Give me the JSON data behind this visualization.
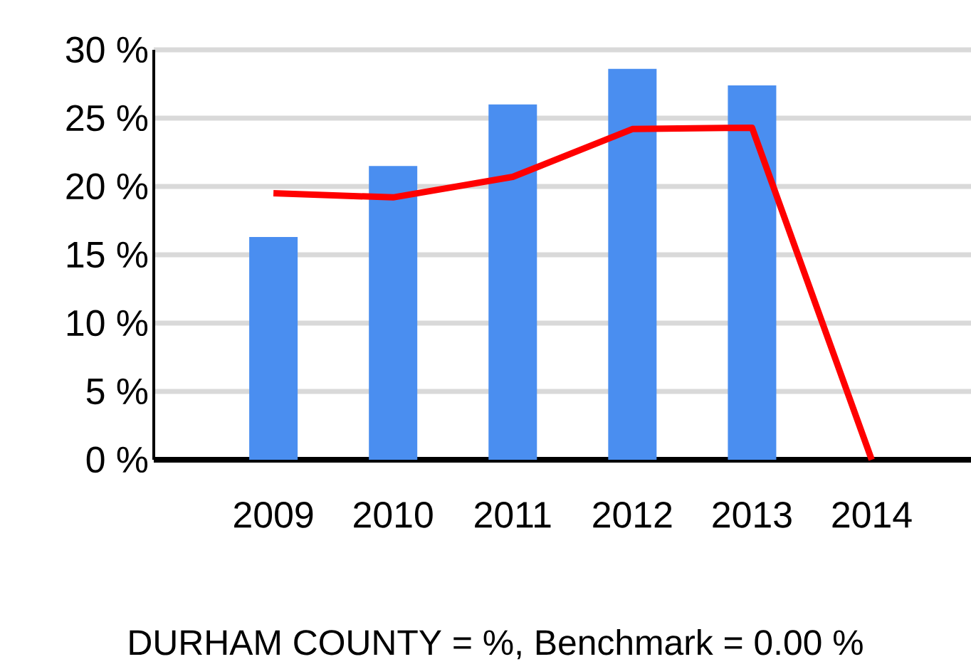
{
  "chart_data": {
    "type": "bar",
    "categories": [
      "2009",
      "2010",
      "2011",
      "2012",
      "2013",
      "2014"
    ],
    "series": [
      {
        "color": "#4a8ef0",
        "values": [
          16.3,
          21.5,
          26.0,
          28.6,
          27.4,
          null
        ]
      },
      {
        "type": "line",
        "color": "#ff0000",
        "values": [
          19.5,
          19.2,
          20.7,
          24.2,
          24.3,
          0
        ]
      }
    ],
    "ylim": [
      0,
      30
    ],
    "yticks": [
      {
        "value": 0,
        "label": "0 %"
      },
      {
        "value": 5,
        "label": "5 %"
      },
      {
        "value": 10,
        "label": "10 %"
      },
      {
        "value": 15,
        "label": "15 %"
      },
      {
        "value": 20,
        "label": "20 %"
      },
      {
        "value": 25,
        "label": "25 %"
      },
      {
        "value": 30,
        "label": "30 %"
      }
    ],
    "grid": "y",
    "marker": "none",
    "annotations": [
      "DURHAM COUNTY =  %, Benchmark = 0.00 %"
    ]
  }
}
